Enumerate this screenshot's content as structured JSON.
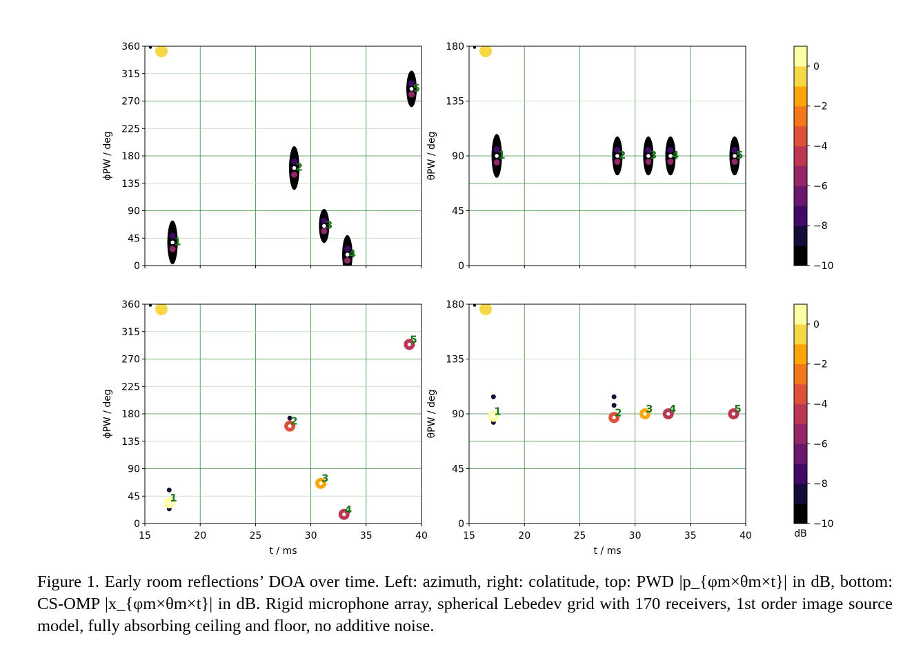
{
  "caption": {
    "prefix": "Figure 1.",
    "text": "Early room reflections’ DOA over time. Left: azimuth, right: colatitude, top: PWD |p_{φm×θm×t}| in dB, bottom: CS-OMP |x_{φm×θm×t}| in dB. Rigid microphone array, spherical Lebedev grid with 170 receivers, 1st order image source model, fully absorbing ceiling and floor, no additive noise."
  },
  "colorbar": {
    "label": "dB",
    "ticks": [
      0,
      -2,
      -4,
      -6,
      -8,
      -10
    ],
    "tick_labels": [
      "0",
      "−2",
      "−4",
      "−6",
      "−8",
      "−10"
    ],
    "range": [
      -10,
      1
    ],
    "levels": [
      "#000004",
      "#160b39",
      "#420a68",
      "#6a176e",
      "#932667",
      "#bc3754",
      "#dd513a",
      "#f37819",
      "#fca50a",
      "#f6d746",
      "#fcffa4"
    ]
  },
  "chart_data": [
    {
      "type": "scatter",
      "panel": "top-left",
      "xlabel": "",
      "ylabel": "ϕPW / deg",
      "xlim": [
        15,
        40
      ],
      "ylim": [
        0,
        360
      ],
      "xticks": [
        15,
        20,
        25,
        30,
        35,
        40
      ],
      "yticks": [
        0,
        45,
        90,
        135,
        180,
        225,
        270,
        315,
        360
      ],
      "direct": {
        "t": 15.5,
        "v": 358,
        "db": 0
      },
      "reflections": [
        {
          "label": "1",
          "t": 17.5,
          "center": 38,
          "spread": 18
        },
        {
          "label": "2",
          "t": 28.5,
          "center": 160,
          "spread": 18
        },
        {
          "label": "3",
          "t": 31.2,
          "center": 65,
          "spread": 14
        },
        {
          "label": "4",
          "t": 33.3,
          "center": 18,
          "spread": 16
        },
        {
          "label": "5",
          "t": 39.1,
          "center": 290,
          "spread": 15
        }
      ]
    },
    {
      "type": "scatter",
      "panel": "top-right",
      "xlabel": "",
      "ylabel": "θPW / deg",
      "xlim": [
        15,
        40
      ],
      "ylim": [
        0,
        180
      ],
      "xticks": [
        15,
        20,
        25,
        30,
        35,
        40
      ],
      "yticks": [
        0,
        45,
        90,
        135,
        180
      ],
      "direct": {
        "t": 15.5,
        "v": 179,
        "db": 0
      },
      "reflections": [
        {
          "label": "1",
          "t": 17.5,
          "center": 90,
          "spread": 18
        },
        {
          "label": "2",
          "t": 28.4,
          "center": 90,
          "spread": 16
        },
        {
          "label": "3",
          "t": 31.2,
          "center": 90,
          "spread": 16
        },
        {
          "label": "4",
          "t": 33.2,
          "center": 90,
          "spread": 16
        },
        {
          "label": "5",
          "t": 39.0,
          "center": 90,
          "spread": 16
        }
      ]
    },
    {
      "type": "scatter",
      "panel": "bottom-left",
      "xlabel": "t / ms",
      "ylabel": "ϕPW / deg",
      "xlim": [
        15,
        40
      ],
      "ylim": [
        0,
        360
      ],
      "xticks": [
        15,
        20,
        25,
        30,
        35,
        40
      ],
      "yticks": [
        0,
        45,
        90,
        135,
        180,
        225,
        270,
        315,
        360
      ],
      "direct": {
        "t": 15.5,
        "v": 358,
        "db": 0
      },
      "points": [
        {
          "label": "1",
          "t": 17.2,
          "v": 34,
          "db": 0.5,
          "extra": [
            {
              "v": 55
            },
            {
              "v": 24
            }
          ]
        },
        {
          "label": "2",
          "t": 28.1,
          "v": 160,
          "db": -3.5,
          "extra": [
            {
              "v": 173
            }
          ]
        },
        {
          "label": "3",
          "t": 30.9,
          "v": 66,
          "db": -2,
          "extra": []
        },
        {
          "label": "4",
          "t": 33.0,
          "v": 15,
          "db": -4.5,
          "extra": []
        },
        {
          "label": "5",
          "t": 38.9,
          "v": 294,
          "db": -5,
          "extra": []
        }
      ]
    },
    {
      "type": "scatter",
      "panel": "bottom-right",
      "xlabel": "t / ms",
      "ylabel": "θPW / deg",
      "xlim": [
        15,
        40
      ],
      "ylim": [
        0,
        180
      ],
      "xticks": [
        15,
        20,
        25,
        30,
        35,
        40
      ],
      "yticks": [
        0,
        45,
        90,
        135,
        180
      ],
      "direct": {
        "t": 15.5,
        "v": 179,
        "db": 0
      },
      "points": [
        {
          "label": "1",
          "t": 17.2,
          "v": 88,
          "db": 0.5,
          "extra": [
            {
              "v": 104
            },
            {
              "v": 83
            }
          ]
        },
        {
          "label": "2",
          "t": 28.1,
          "v": 87,
          "db": -3.5,
          "extra": [
            {
              "v": 104
            },
            {
              "v": 97
            }
          ]
        },
        {
          "label": "3",
          "t": 30.9,
          "v": 90,
          "db": -2,
          "extra": []
        },
        {
          "label": "4",
          "t": 33.0,
          "v": 90,
          "db": -4.5,
          "extra": []
        },
        {
          "label": "5",
          "t": 38.9,
          "v": 90,
          "db": -5,
          "extra": []
        }
      ]
    }
  ]
}
